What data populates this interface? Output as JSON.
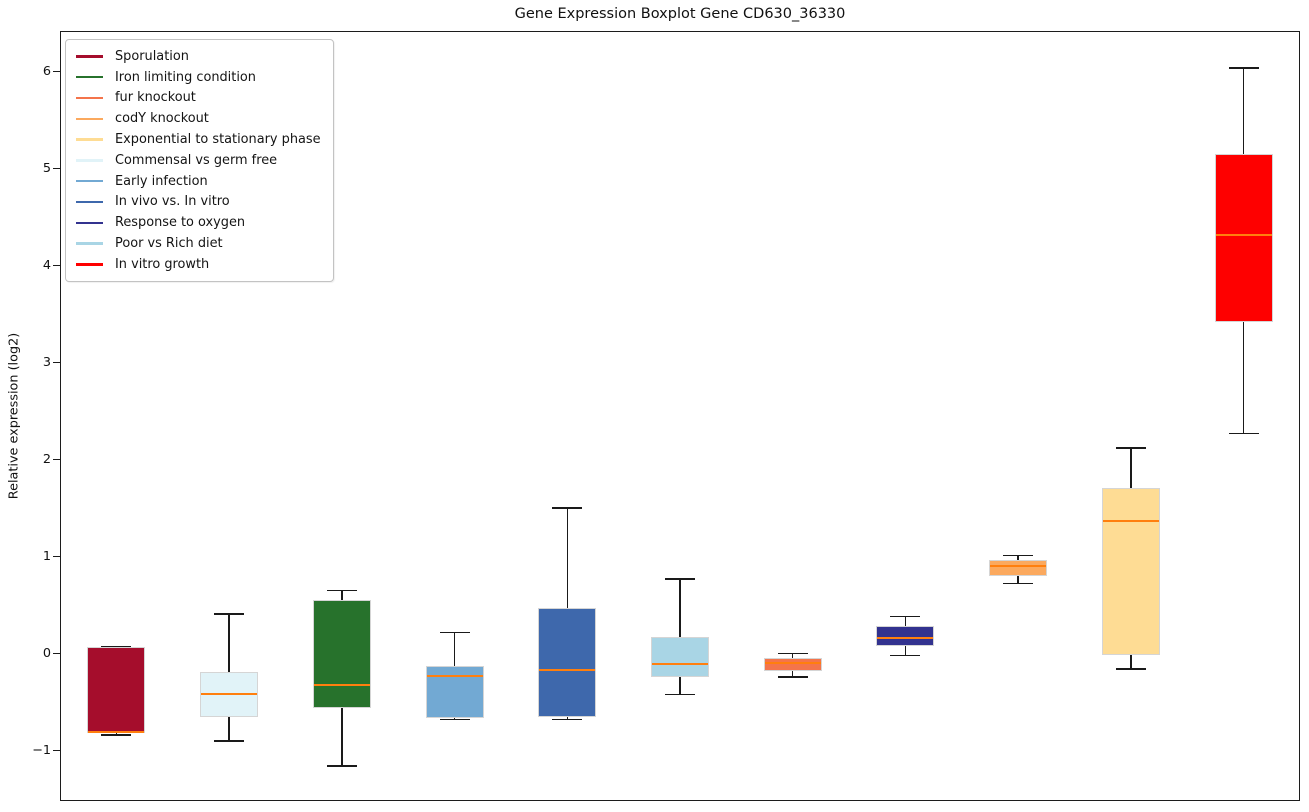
{
  "figure": {
    "title": "Gene Expression Boxplot Gene CD630_36330",
    "background_color": "#ffffff"
  },
  "chart_data": {
    "type": "boxplot",
    "title": "Gene Expression Boxplot Gene CD630_36330",
    "xlabel": "",
    "ylabel": "Relative expression (log2)",
    "ylim": [
      -1.52,
      6.42
    ],
    "y_ticks": [
      6,
      5,
      4,
      3,
      2,
      1,
      0,
      -1
    ],
    "x_tick_labels": [],
    "grid": false,
    "legend_position": "upper left",
    "median_color": "#ff7f0e",
    "box_edge_color": "#d5d5d5",
    "whisker_color": "#1a1a1a",
    "boxes": [
      {
        "condition": "Sporulation",
        "color": "#a50d2c",
        "whislo": -0.84,
        "q1": -0.82,
        "med": -0.81,
        "q3": 0.07,
        "whishi": 0.07
      },
      {
        "condition": "Commensal vs germ free",
        "color": "#e1f3f8",
        "whislo": -0.9,
        "q1": -0.65,
        "med": -0.42,
        "q3": -0.19,
        "whishi": 0.41
      },
      {
        "condition": "Iron limiting condition",
        "color": "#27722c",
        "whislo": -1.16,
        "q1": -0.56,
        "med": -0.32,
        "q3": 0.55,
        "whishi": 0.65
      },
      {
        "condition": "Early infection",
        "color": "#72a9d3",
        "whislo": -0.68,
        "q1": -0.66,
        "med": -0.23,
        "q3": -0.13,
        "whishi": 0.22
      },
      {
        "condition": "In vivo vs. In vitro",
        "color": "#3e68ac",
        "whislo": -0.68,
        "q1": -0.65,
        "med": -0.17,
        "q3": 0.47,
        "whishi": 1.5
      },
      {
        "condition": "Poor vs Rich diet",
        "color": "#a9d5e5",
        "whislo": -0.42,
        "q1": -0.24,
        "med": -0.11,
        "q3": 0.17,
        "whishi": 0.77
      },
      {
        "condition": "fur knockout",
        "color": "#f4744b",
        "whislo": -0.24,
        "q1": -0.18,
        "med": -0.1,
        "q3": -0.05,
        "whishi": 0.0
      },
      {
        "condition": "Response to oxygen",
        "color": "#32328f",
        "whislo": -0.02,
        "q1": 0.08,
        "med": 0.16,
        "q3": 0.28,
        "whishi": 0.38
      },
      {
        "condition": "codY knockout",
        "color": "#fba95e",
        "whislo": 0.72,
        "q1": 0.8,
        "med": 0.9,
        "q3": 0.96,
        "whishi": 1.01
      },
      {
        "condition": "Exponential to stationary phase",
        "color": "#fedc94",
        "whislo": -0.16,
        "q1": -0.01,
        "med": 1.37,
        "q3": 1.71,
        "whishi": 2.12
      },
      {
        "condition": "In vitro growth",
        "color": "#fe0000",
        "whislo": 2.27,
        "q1": 3.42,
        "med": 4.32,
        "q3": 5.15,
        "whishi": 6.04
      }
    ]
  },
  "legend": {
    "items": [
      {
        "label": "Sporulation",
        "color": "#a50d2c"
      },
      {
        "label": "Iron limiting condition",
        "color": "#27722c"
      },
      {
        "label": "fur knockout",
        "color": "#f4744b"
      },
      {
        "label": "codY knockout",
        "color": "#fba95e"
      },
      {
        "label": "Exponential to stationary phase",
        "color": "#fedc94"
      },
      {
        "label": "Commensal vs germ free",
        "color": "#e1f3f8"
      },
      {
        "label": "Early infection",
        "color": "#72a9d3"
      },
      {
        "label": "In vivo vs. In vitro",
        "color": "#3e68ac"
      },
      {
        "label": "Response to oxygen",
        "color": "#32328f"
      },
      {
        "label": "Poor vs Rich diet",
        "color": "#a9d5e5"
      },
      {
        "label": "In vitro growth",
        "color": "#fe0000"
      }
    ]
  }
}
